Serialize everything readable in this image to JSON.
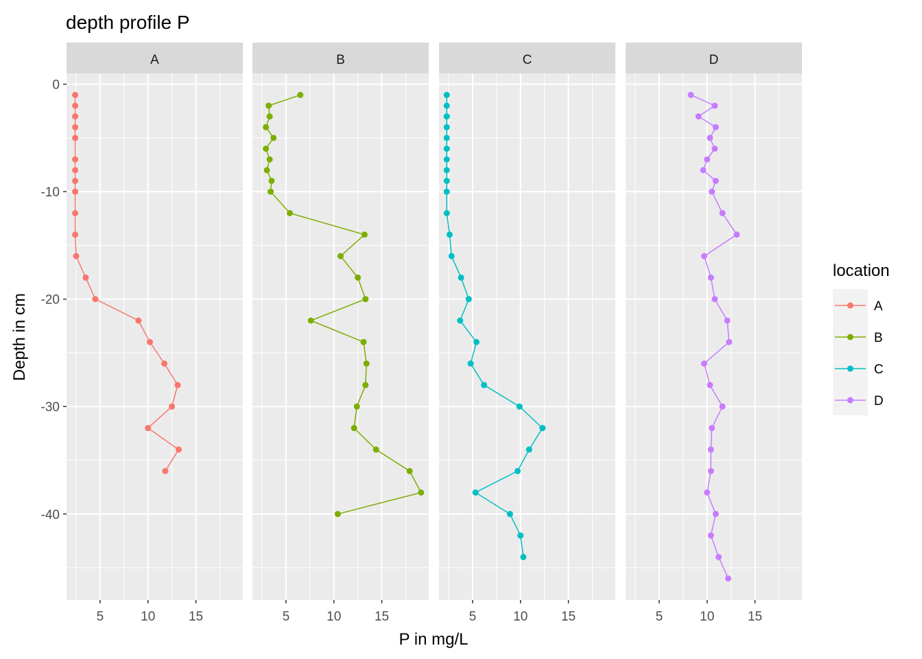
{
  "chart_data": {
    "type": "line",
    "title": "depth profile P",
    "xlabel": "P in mg/L",
    "ylabel": "Depth in cm",
    "xlim": [
      1.5,
      19.9
    ],
    "ylim": [
      -48,
      1
    ],
    "x_ticks": [
      5,
      10,
      15
    ],
    "x_tick_labels": [
      "5",
      "10",
      "15"
    ],
    "y_ticks": [
      0,
      -10,
      -20,
      -30,
      -40
    ],
    "y_tick_labels": [
      "0",
      "-10",
      "-20",
      "-30",
      "-40"
    ],
    "grid": true,
    "legend": {
      "title": "location",
      "position": "right"
    },
    "panel_background": "#ebebeb",
    "strip_background": "#d9d9d9",
    "series": [
      {
        "name": "A",
        "color": "#F8766D",
        "points": [
          [
            2.4,
            -1
          ],
          [
            2.4,
            -2
          ],
          [
            2.4,
            -3
          ],
          [
            2.4,
            -4
          ],
          [
            2.4,
            -5
          ],
          [
            2.4,
            -7
          ],
          [
            2.4,
            -8
          ],
          [
            2.4,
            -9
          ],
          [
            2.4,
            -10
          ],
          [
            2.4,
            -12
          ],
          [
            2.4,
            -14
          ],
          [
            2.5,
            -16
          ],
          [
            3.5,
            -18
          ],
          [
            4.5,
            -20
          ],
          [
            9.0,
            -22
          ],
          [
            10.2,
            -24
          ],
          [
            11.7,
            -26
          ],
          [
            13.1,
            -28
          ],
          [
            12.5,
            -30
          ],
          [
            10.0,
            -32
          ],
          [
            13.2,
            -34
          ],
          [
            11.8,
            -36
          ]
        ]
      },
      {
        "name": "B",
        "color": "#7CAE00",
        "points": [
          [
            6.5,
            -1
          ],
          [
            3.2,
            -2
          ],
          [
            3.3,
            -3
          ],
          [
            2.9,
            -4
          ],
          [
            3.7,
            -5
          ],
          [
            2.9,
            -6
          ],
          [
            3.3,
            -7
          ],
          [
            3.0,
            -8
          ],
          [
            3.5,
            -9
          ],
          [
            3.4,
            -10
          ],
          [
            5.4,
            -12
          ],
          [
            13.2,
            -14
          ],
          [
            10.7,
            -16
          ],
          [
            12.5,
            -18
          ],
          [
            13.3,
            -20
          ],
          [
            7.6,
            -22
          ],
          [
            13.1,
            -24
          ],
          [
            13.4,
            -26
          ],
          [
            13.3,
            -28
          ],
          [
            12.4,
            -30
          ],
          [
            12.1,
            -32
          ],
          [
            14.4,
            -34
          ],
          [
            17.9,
            -36
          ],
          [
            19.1,
            -38
          ],
          [
            10.4,
            -40
          ]
        ]
      },
      {
        "name": "C",
        "color": "#00BFC4",
        "points": [
          [
            2.3,
            -1
          ],
          [
            2.3,
            -2
          ],
          [
            2.3,
            -3
          ],
          [
            2.3,
            -4
          ],
          [
            2.3,
            -5
          ],
          [
            2.3,
            -6
          ],
          [
            2.3,
            -7
          ],
          [
            2.3,
            -8
          ],
          [
            2.3,
            -9
          ],
          [
            2.3,
            -10
          ],
          [
            2.3,
            -12
          ],
          [
            2.6,
            -14
          ],
          [
            2.8,
            -16
          ],
          [
            3.8,
            -18
          ],
          [
            4.6,
            -20
          ],
          [
            3.7,
            -22
          ],
          [
            5.4,
            -24
          ],
          [
            4.8,
            -26
          ],
          [
            6.2,
            -28
          ],
          [
            9.9,
            -30
          ],
          [
            12.3,
            -32
          ],
          [
            10.9,
            -34
          ],
          [
            9.7,
            -36
          ],
          [
            5.3,
            -38
          ],
          [
            8.9,
            -40
          ],
          [
            10.0,
            -42
          ],
          [
            10.3,
            -44
          ]
        ]
      },
      {
        "name": "D",
        "color": "#C77CFF",
        "points": [
          [
            8.3,
            -1
          ],
          [
            10.8,
            -2
          ],
          [
            9.1,
            -3
          ],
          [
            10.9,
            -4
          ],
          [
            10.3,
            -5
          ],
          [
            10.8,
            -6
          ],
          [
            10.0,
            -7
          ],
          [
            9.6,
            -8
          ],
          [
            10.9,
            -9
          ],
          [
            10.5,
            -10
          ],
          [
            11.6,
            -12
          ],
          [
            13.1,
            -14
          ],
          [
            9.7,
            -16
          ],
          [
            10.4,
            -18
          ],
          [
            10.8,
            -20
          ],
          [
            12.1,
            -22
          ],
          [
            12.3,
            -24
          ],
          [
            9.7,
            -26
          ],
          [
            10.3,
            -28
          ],
          [
            11.6,
            -30
          ],
          [
            10.5,
            -32
          ],
          [
            10.4,
            -34
          ],
          [
            10.4,
            -36
          ],
          [
            10.0,
            -38
          ],
          [
            10.9,
            -40
          ],
          [
            10.4,
            -42
          ],
          [
            11.2,
            -44
          ],
          [
            12.2,
            -46
          ]
        ]
      }
    ]
  }
}
